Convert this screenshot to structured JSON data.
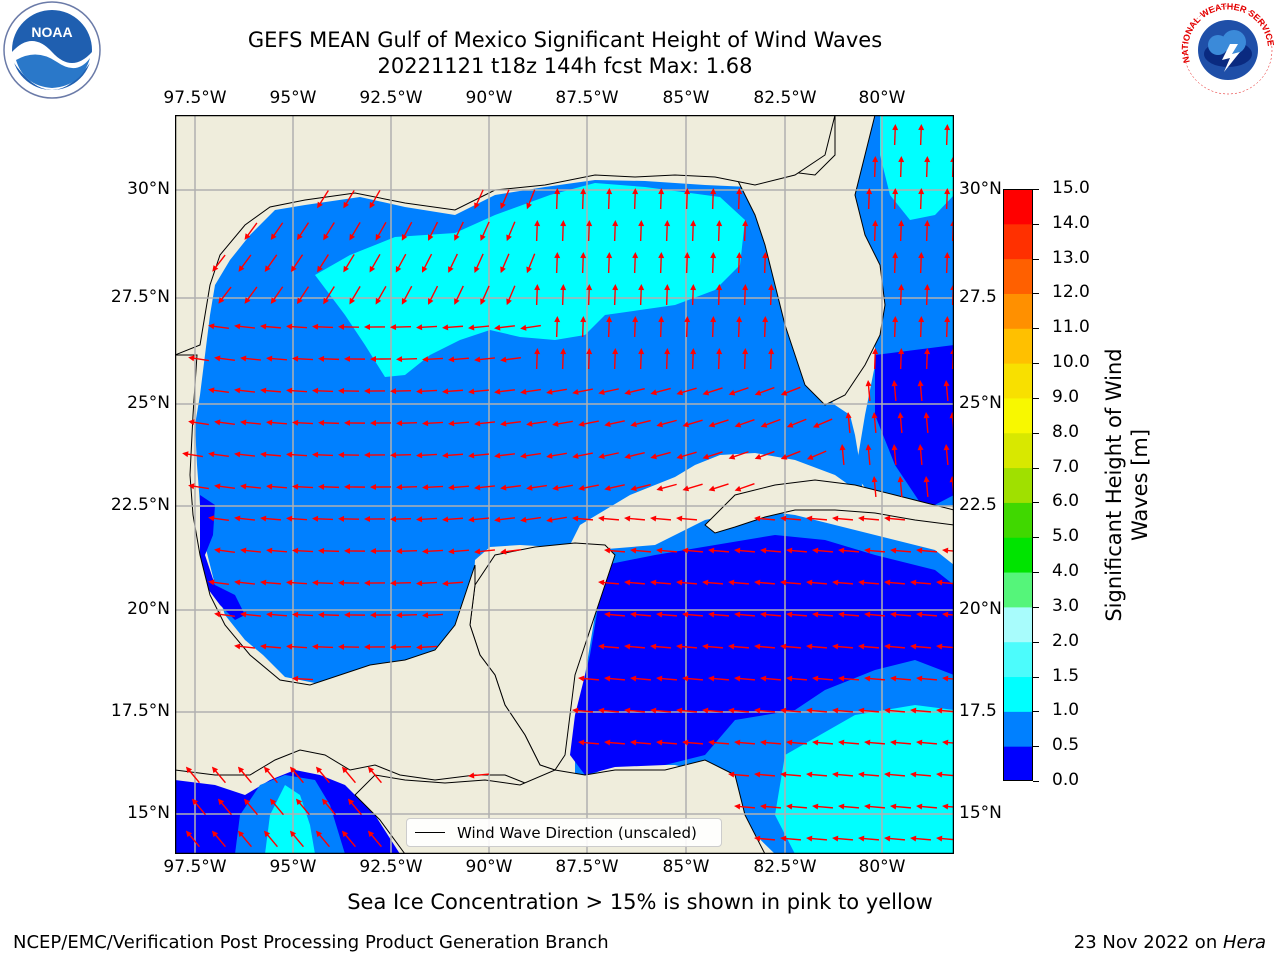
{
  "title": {
    "line1": "GEFS MEAN Gulf of Mexico Significant Height of Wind Waves",
    "line2": "20221121 t18z 144h fcst   Max: 1.68"
  },
  "map": {
    "lon_labels": [
      "97.5°W",
      "95°W",
      "92.5°W",
      "90°W",
      "87.5°W",
      "85°W",
      "82.5°W",
      "80°W"
    ],
    "lat_labels_left": [
      "30°N",
      "27.5°N",
      "25°N",
      "22.5°N",
      "20°N",
      "17.5°N",
      "15°N"
    ],
    "lat_labels_right": [
      "30°N",
      "27.5",
      "25°N",
      "22.5",
      "20°N",
      "17.5",
      "15°N"
    ],
    "legend_label": "Wind Wave Direction (unscaled)",
    "colors": {
      "land": "#efeddc",
      "ocean_0": "#0000fe",
      "ocean_05": "#0080ff",
      "ocean_10": "#00ffff",
      "ocean_15": "#3cfafa",
      "arrow": "#ff0000",
      "grid": "#b0b0b0"
    }
  },
  "colorbar": {
    "label_line1": "Significant Height of Wind",
    "label_line2": "Waves [m]",
    "ticks": [
      "15.0",
      "14.0",
      "13.0",
      "12.0",
      "11.0",
      "10.0",
      "9.0",
      "8.0",
      "7.0",
      "6.0",
      "5.0",
      "4.0",
      "3.0",
      "2.0",
      "1.5",
      "1.0",
      "0.5",
      "0.0"
    ],
    "bins": [
      "#0000fe",
      "#0080ff",
      "#00ffff",
      "#4cfcfc",
      "#a8fcfc",
      "#55f57a",
      "#00e400",
      "#40d800",
      "#a0e000",
      "#d8e800",
      "#f8f800",
      "#f8e000",
      "#ffc000",
      "#ff9000",
      "#ff6000",
      "#ff3000",
      "#ff0000"
    ]
  },
  "note": "Sea Ice Concentration > 15% is shown in pink to yellow",
  "footer": {
    "left": "NCEP/EMC/Verification Post Processing Product Generation Branch",
    "right_prefix": "23 Nov 2022 on ",
    "right_host": "Hera"
  },
  "logos": {
    "noaa_text": "NOAA",
    "nws_text": "NATIONAL WEATHER SERVICE"
  }
}
